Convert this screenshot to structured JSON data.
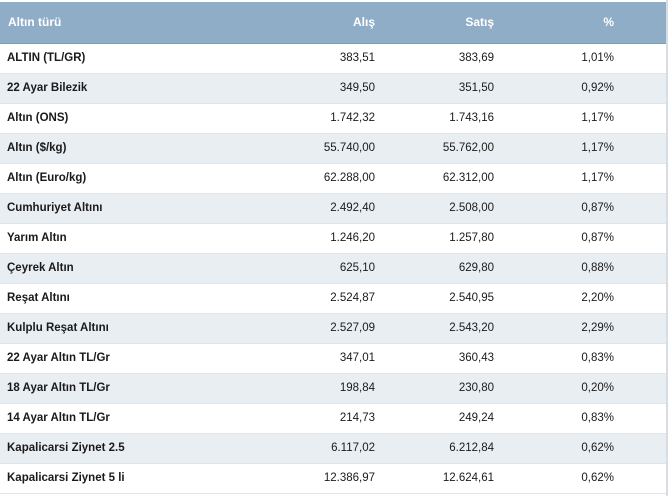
{
  "table": {
    "headers": {
      "name": "Altın türü",
      "buy": "Alış",
      "sell": "Satış",
      "pct": "%"
    },
    "rows": [
      {
        "name": "ALTIN (TL/GR)",
        "buy": "383,51",
        "sell": "383,69",
        "pct": "1,01%"
      },
      {
        "name": "22 Ayar Bilezik",
        "buy": "349,50",
        "sell": "351,50",
        "pct": "0,92%"
      },
      {
        "name": "Altın (ONS)",
        "buy": "1.742,32",
        "sell": "1.743,16",
        "pct": "1,17%"
      },
      {
        "name": "Altın ($/kg)",
        "buy": "55.740,00",
        "sell": "55.762,00",
        "pct": "1,17%"
      },
      {
        "name": "Altın (Euro/kg)",
        "buy": "62.288,00",
        "sell": "62.312,00",
        "pct": "1,17%"
      },
      {
        "name": "Cumhuriyet Altını",
        "buy": "2.492,40",
        "sell": "2.508,00",
        "pct": "0,87%"
      },
      {
        "name": "Yarım Altın",
        "buy": "1.246,20",
        "sell": "1.257,80",
        "pct": "0,87%"
      },
      {
        "name": "Çeyrek Altın",
        "buy": "625,10",
        "sell": "629,80",
        "pct": "0,88%"
      },
      {
        "name": "Reşat Altını",
        "buy": "2.524,87",
        "sell": "2.540,95",
        "pct": "2,20%"
      },
      {
        "name": "Kulplu Reşat Altını",
        "buy": "2.527,09",
        "sell": "2.543,20",
        "pct": "2,29%"
      },
      {
        "name": "22 Ayar Altın TL/Gr",
        "buy": "347,01",
        "sell": "360,43",
        "pct": "0,83%"
      },
      {
        "name": "18 Ayar Altın TL/Gr",
        "buy": "198,84",
        "sell": "230,80",
        "pct": "0,20%"
      },
      {
        "name": "14 Ayar Altın TL/Gr",
        "buy": "214,73",
        "sell": "249,24",
        "pct": "0,83%"
      },
      {
        "name": "Kapalicarsi Ziynet 2.5",
        "buy": "6.117,02",
        "sell": "6.212,84",
        "pct": "0,62%"
      },
      {
        "name": "Kapalicarsi Ziynet 5 li",
        "buy": "12.386,97",
        "sell": "12.624,61",
        "pct": "0,62%"
      }
    ]
  },
  "colors": {
    "header_bg": "#90adc8",
    "row_alt_bg": "#e9eef3"
  }
}
